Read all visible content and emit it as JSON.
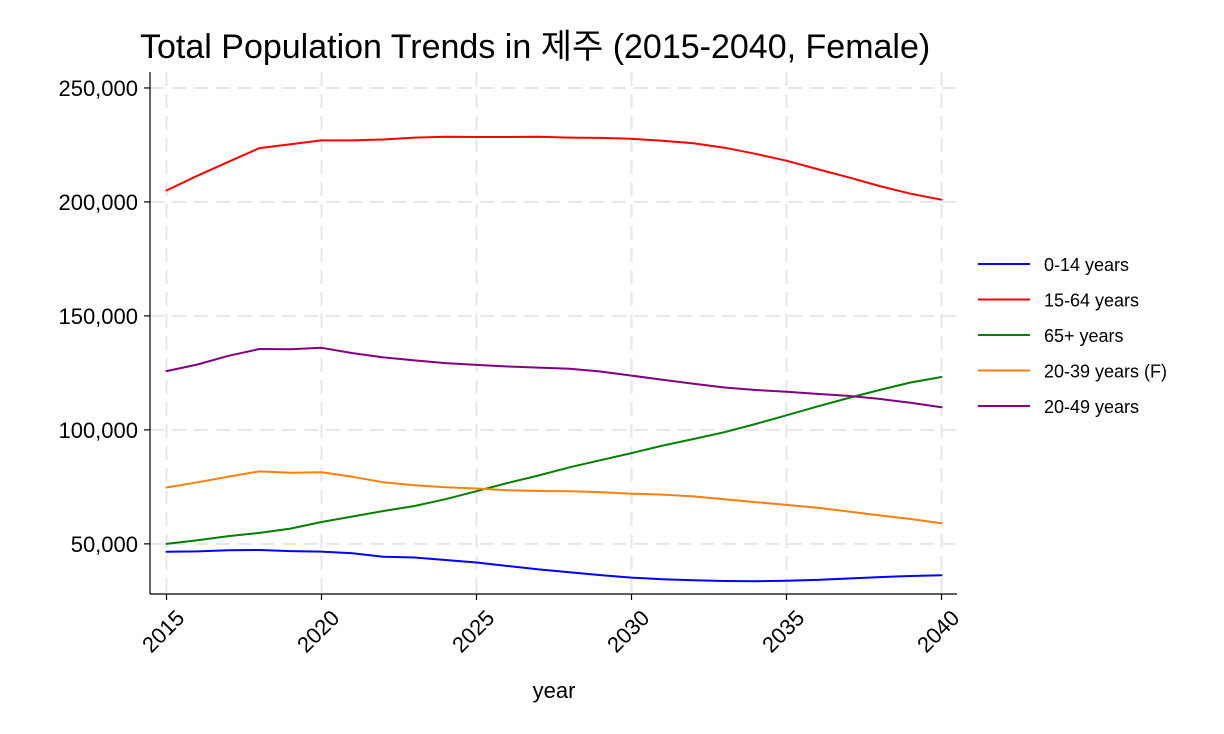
{
  "chart_data": {
    "type": "line",
    "title": "Total Population Trends in 제주 (2015-2040, Female)",
    "xlabel": "year",
    "ylabel": "",
    "x": [
      2015,
      2016,
      2017,
      2018,
      2019,
      2020,
      2021,
      2022,
      2023,
      2024,
      2025,
      2026,
      2027,
      2028,
      2029,
      2030,
      2031,
      2032,
      2033,
      2034,
      2035,
      2036,
      2037,
      2038,
      2039,
      2040
    ],
    "xlim": [
      2015,
      2040
    ],
    "ylim": [
      28000,
      257000
    ],
    "x_ticks": [
      2015,
      2020,
      2025,
      2030,
      2035,
      2040
    ],
    "x_tick_labels": [
      "2015",
      "2020",
      "2025",
      "2030",
      "2035",
      "2040"
    ],
    "y_ticks": [
      50000,
      100000,
      150000,
      200000,
      250000
    ],
    "y_tick_labels": [
      "50,000",
      "100,000",
      "150,000",
      "200,000",
      "250,000"
    ],
    "grid": true,
    "legend_position": "right",
    "series": [
      {
        "name": "0-14 years",
        "color": "#0000ff",
        "values": [
          46500,
          46700,
          47200,
          47300,
          46800,
          46600,
          45900,
          44300,
          44000,
          42900,
          41800,
          40300,
          38800,
          37500,
          36300,
          35200,
          34500,
          34000,
          33700,
          33600,
          33800,
          34200,
          34800,
          35400,
          35900,
          36200
        ]
      },
      {
        "name": "15-64 years",
        "color": "#ff0000",
        "values": [
          205000,
          211500,
          217600,
          223600,
          225300,
          227000,
          227000,
          227400,
          228200,
          228600,
          228500,
          228500,
          228600,
          228200,
          228100,
          227700,
          226800,
          225700,
          223800,
          221100,
          218100,
          214400,
          210800,
          207000,
          203600,
          201000
        ]
      },
      {
        "name": "65+ years",
        "color": "#008000",
        "values": [
          50000,
          51600,
          53400,
          54800,
          56700,
          59600,
          62000,
          64400,
          66600,
          69600,
          73100,
          76700,
          80000,
          83600,
          86700,
          89800,
          93100,
          96000,
          99000,
          102600,
          106400,
          110300,
          114000,
          117500,
          120800,
          123200
        ]
      },
      {
        "name": "20-39 years (F)",
        "color": "#ff7f0e",
        "values": [
          74700,
          77000,
          79500,
          81800,
          81200,
          81400,
          79400,
          77000,
          75700,
          74800,
          74300,
          73500,
          73200,
          73100,
          72700,
          72000,
          71600,
          70800,
          69600,
          68300,
          67100,
          65800,
          64200,
          62500,
          60900,
          59000
        ]
      },
      {
        "name": "20-49 years",
        "color": "#800080",
        "values": [
          125800,
          128700,
          132500,
          135500,
          135400,
          136000,
          133700,
          131800,
          130500,
          129300,
          128500,
          127800,
          127300,
          126800,
          125600,
          123800,
          122000,
          120200,
          118600,
          117500,
          116700,
          115800,
          114900,
          113600,
          111900,
          109900
        ]
      }
    ]
  }
}
